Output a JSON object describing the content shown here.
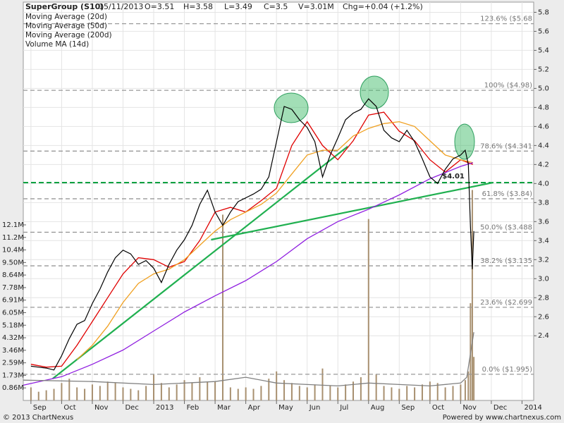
{
  "chart_data": {
    "type": "stock",
    "title": "SuperGroup (S10)",
    "date": "15/11/2013",
    "quote": [
      "O=3.51",
      "H=3.58",
      "L=3.49",
      "C=3.5",
      "V=3.01M",
      "Chg=+0.04 (+1.2%)"
    ],
    "xlim": [
      -0.25,
      16.38
    ],
    "xticks": [
      {
        "value": 0,
        "label": "Sep"
      },
      {
        "value": 1,
        "label": "Oct"
      },
      {
        "value": 2,
        "label": "Nov"
      },
      {
        "value": 3,
        "label": "Dec"
      },
      {
        "value": 4,
        "label": "2013"
      },
      {
        "value": 5,
        "label": "Feb"
      },
      {
        "value": 6,
        "label": "Mar"
      },
      {
        "value": 7,
        "label": "Apr"
      },
      {
        "value": 8,
        "label": "May"
      },
      {
        "value": 9,
        "label": "Jun"
      },
      {
        "value": 10,
        "label": "Jul"
      },
      {
        "value": 11,
        "label": "Aug"
      },
      {
        "value": 12,
        "label": "Sep"
      },
      {
        "value": 13,
        "label": "Oct"
      },
      {
        "value": 14,
        "label": "Nov"
      },
      {
        "value": 15,
        "label": "Dec"
      },
      {
        "value": 16,
        "label": "2014"
      }
    ],
    "ylim": [
      1.72,
      5.87
    ],
    "yticks": [
      2.4,
      2.6,
      2.8,
      {
        "value": 3,
        "label": "3.0"
      },
      3.2,
      3.4,
      3.6,
      3.8,
      {
        "value": 4,
        "label": "4.0"
      },
      4.2,
      4.4,
      4.6,
      4.8,
      {
        "value": 5,
        "label": "5.0"
      },
      5.2,
      5.4,
      5.6,
      5.8
    ],
    "volume_ylim": [
      0,
      27.2
    ],
    "volume_ticks": [
      {
        "value": 0.864,
        "label": "0.86M"
      },
      {
        "value": 1.728,
        "label": "1.73M"
      },
      {
        "value": 2.592,
        "label": "2.59M"
      },
      {
        "value": 3.456,
        "label": "3.46M"
      },
      {
        "value": 4.32,
        "label": "4.32M"
      },
      {
        "value": 5.184,
        "label": "5.18M"
      },
      {
        "value": 6.048,
        "label": "6.05M"
      },
      {
        "value": 6.912,
        "label": "6.91M"
      },
      {
        "value": 7.776,
        "label": "7.78M"
      },
      {
        "value": 8.64,
        "label": "8.64M"
      },
      {
        "value": 9.504,
        "label": "9.50M"
      },
      {
        "value": 10.368,
        "label": "10.4M"
      },
      {
        "value": 11.232,
        "label": "11.2M"
      },
      {
        "value": 12.096,
        "label": "12.1M"
      }
    ],
    "grid": true,
    "price": {
      "color": "#000000",
      "x": [
        0,
        0.25,
        0.5,
        0.75,
        1,
        1.25,
        1.5,
        1.75,
        2,
        2.25,
        2.5,
        2.75,
        3,
        3.25,
        3.5,
        3.75,
        4,
        4.25,
        4.5,
        4.75,
        5,
        5.25,
        5.5,
        5.75,
        6,
        6.25,
        6.5,
        6.75,
        7,
        7.25,
        7.5,
        7.75,
        8,
        8.25,
        8.5,
        8.75,
        9,
        9.25,
        9.5,
        9.75,
        10,
        10.25,
        10.5,
        10.75,
        11,
        11.25,
        11.5,
        11.75,
        12,
        12.25,
        12.5,
        12.75,
        13,
        13.25,
        13.5,
        13.75,
        14,
        14.15,
        14.25,
        14.32,
        14.38,
        14.43
      ],
      "values": [
        2.08,
        2.07,
        2.06,
        2.04,
        2.19,
        2.37,
        2.52,
        2.56,
        2.74,
        2.89,
        3.07,
        3.22,
        3.3,
        3.26,
        3.15,
        3.19,
        3.11,
        2.96,
        3.15,
        3.3,
        3.41,
        3.56,
        3.78,
        3.93,
        3.7,
        3.56,
        3.7,
        3.81,
        3.85,
        3.89,
        3.94,
        4.07,
        4.44,
        4.81,
        4.78,
        4.67,
        4.59,
        4.44,
        4.07,
        4.3,
        4.48,
        4.67,
        4.74,
        4.78,
        4.89,
        4.81,
        4.56,
        4.48,
        4.44,
        4.56,
        4.44,
        4.26,
        4.07,
        4.0,
        4.15,
        4.26,
        4.3,
        4.35,
        4.2,
        3.55,
        3.1,
        3.5
      ]
    },
    "volume": {
      "color": "#a89070",
      "values": [
        0.9,
        0.6,
        0.7,
        0.8,
        1.2,
        1.5,
        0.9,
        0.8,
        1.1,
        1.0,
        1.3,
        1.2,
        0.9,
        0.8,
        0.7,
        1.0,
        1.8,
        1.2,
        0.9,
        1.1,
        1.4,
        1.2,
        1.6,
        1.3,
        1.3,
        12.8,
        0.9,
        0.8,
        0.9,
        0.8,
        1.0,
        1.5,
        2.0,
        1.4,
        1.2,
        1.0,
        0.9,
        1.1,
        2.2,
        1.0,
        0.9,
        1.1,
        1.3,
        1.6,
        12.5,
        1.8,
        1.0,
        0.9,
        0.8,
        1.0,
        0.9,
        1.1,
        1.3,
        1.2,
        0.9,
        1.0,
        1.1,
        1.4,
        2.0,
        6.7,
        14.5,
        3.0
      ]
    },
    "series": [
      {
        "name": "Moving Average (20d)",
        "color": "#e00000",
        "x": [
          0,
          0.5,
          1,
          1.5,
          2,
          2.5,
          3,
          3.5,
          4,
          4.5,
          5,
          5.5,
          6,
          6.5,
          7,
          7.5,
          8,
          8.5,
          9,
          9.5,
          10,
          10.5,
          11,
          11.5,
          12,
          12.5,
          13,
          13.5,
          14,
          14.4
        ],
        "values": [
          2.1,
          2.07,
          2.08,
          2.3,
          2.55,
          2.8,
          3.05,
          3.22,
          3.2,
          3.12,
          3.18,
          3.4,
          3.7,
          3.75,
          3.7,
          3.82,
          3.95,
          4.4,
          4.65,
          4.4,
          4.25,
          4.45,
          4.72,
          4.75,
          4.55,
          4.45,
          4.25,
          4.12,
          4.25,
          4.2
        ]
      },
      {
        "name": "Moving Average (50d)",
        "color": "#f0a020",
        "x": [
          1.5,
          2,
          2.5,
          3,
          3.5,
          4,
          4.5,
          5,
          5.5,
          6,
          6.5,
          7,
          7.5,
          8,
          8.5,
          9,
          9.5,
          10,
          10.5,
          11,
          11.5,
          12,
          12.5,
          13,
          13.5,
          14,
          14.4
        ],
        "values": [
          2.15,
          2.3,
          2.5,
          2.75,
          2.95,
          3.05,
          3.1,
          3.2,
          3.35,
          3.5,
          3.62,
          3.7,
          3.78,
          3.9,
          4.1,
          4.3,
          4.35,
          4.35,
          4.5,
          4.58,
          4.63,
          4.65,
          4.6,
          4.45,
          4.3,
          4.25,
          4.22
        ]
      },
      {
        "name": "Moving Average (200d)",
        "color": "#9020e0",
        "x": [
          -0.25,
          1,
          2,
          3,
          4,
          5,
          6,
          7,
          8,
          9,
          10,
          11,
          12,
          13,
          14,
          14.4
        ],
        "values": [
          1.88,
          1.97,
          2.1,
          2.25,
          2.45,
          2.65,
          2.82,
          2.98,
          3.18,
          3.42,
          3.6,
          3.73,
          3.88,
          4.05,
          4.18,
          4.22
        ]
      },
      {
        "name": "Volume MA (14d)",
        "color": "#808080",
        "axis": "volume",
        "x": [
          -0.25,
          2,
          4,
          6,
          7,
          8,
          9,
          10,
          11,
          12,
          13,
          14,
          14.2,
          14.43
        ],
        "values": [
          1.4,
          1.3,
          1.1,
          1.3,
          1.6,
          1.2,
          1.1,
          1.0,
          1.2,
          1.1,
          1.0,
          1.2,
          1.6,
          4.7
        ]
      }
    ],
    "fib_levels": [
      {
        "value": 5.68,
        "label": "123.6%  ($5.68"
      },
      {
        "value": 4.98,
        "label": "100%  ($4.98)"
      },
      {
        "value": 4.341,
        "label": "78.6%  ($4.341"
      },
      {
        "value": 3.84,
        "label": "61.8%  ($3.84)"
      },
      {
        "value": 3.488,
        "label": "50.0%  ($3.488"
      },
      {
        "value": 3.135,
        "label": "38.2%  ($3.135"
      },
      {
        "value": 2.699,
        "label": "23.6%  ($2.699"
      },
      {
        "value": 1.995,
        "label": "0.0%  ($1.995)"
      }
    ],
    "support": {
      "value": 4.01,
      "label": "$4.01",
      "color": "#00a040"
    },
    "trendlines": {
      "color": "#20b050",
      "lines": [
        {
          "x": [
            0.71,
            10.32
          ],
          "values": [
            1.95,
            4.39
          ]
        },
        {
          "x": [
            5.87,
            15.05
          ],
          "values": [
            3.41,
            4.01
          ]
        }
      ]
    }
  },
  "footer": {
    "left": "© 2013 ChartNexus",
    "right": "Powered by www.chartnexus.com"
  }
}
